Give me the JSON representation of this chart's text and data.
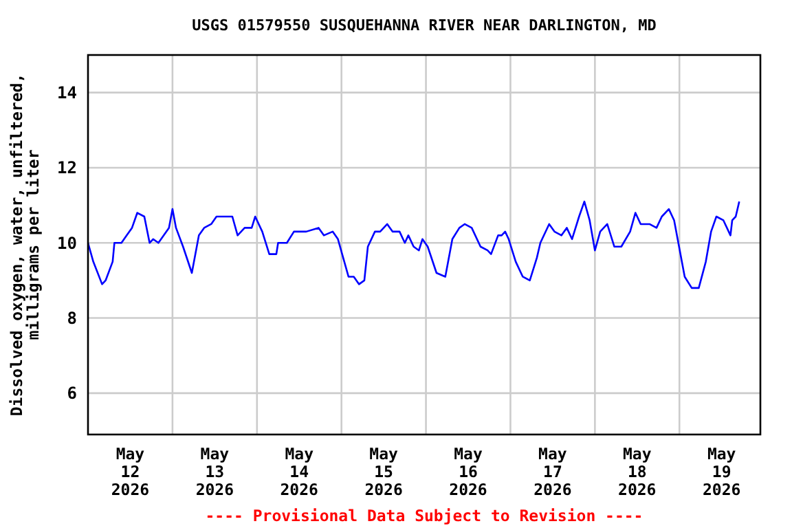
{
  "chart_data": {
    "type": "line",
    "title": "USGS 01579550 SUSQUEHANNA RIVER NEAR DARLINGTON, MD",
    "ylabel": "Dissolved oxygen, water, unfiltered,\nmilligrams per liter",
    "annotations": [
      "---- Provisional Data Subject to Revision ----"
    ],
    "xlim": [
      "2026-05-12T00:00",
      "2026-05-19T23:00"
    ],
    "xticks": [
      {
        "value": "2026-05-12T12:00",
        "label": "May\n12\n2026"
      },
      {
        "value": "2026-05-13T00:00",
        "label": null
      },
      {
        "value": "2026-05-13T12:00",
        "label": "May\n13\n2026"
      },
      {
        "value": "2026-05-14T00:00",
        "label": null
      },
      {
        "value": "2026-05-14T12:00",
        "label": "May\n14\n2026"
      },
      {
        "value": "2026-05-15T00:00",
        "label": null
      },
      {
        "value": "2026-05-15T12:00",
        "label": "May\n15\n2026"
      },
      {
        "value": "2026-05-16T00:00",
        "label": null
      },
      {
        "value": "2026-05-16T12:00",
        "label": "May\n16\n2026"
      },
      {
        "value": "2026-05-17T00:00",
        "label": null
      },
      {
        "value": "2026-05-17T12:00",
        "label": "May\n17\n2026"
      },
      {
        "value": "2026-05-18T00:00",
        "label": null
      },
      {
        "value": "2026-05-18T12:00",
        "label": "May\n18\n2026"
      },
      {
        "value": "2026-05-19T00:00",
        "label": null
      },
      {
        "value": "2026-05-19T12:00",
        "label": "May\n19\n2026"
      }
    ],
    "ylim": [
      4.9,
      15
    ],
    "yticks": [
      6,
      8,
      10,
      12,
      14
    ],
    "grid": true,
    "marker": "none",
    "line_style": "solid",
    "series": [
      {
        "color": "#0000ff",
        "x": [
          "2026-05-12T00:00",
          "2026-05-12T01:30",
          "2026-05-12T04:00",
          "2026-05-12T05:00",
          "2026-05-12T07:00",
          "2026-05-12T07:30",
          "2026-05-12T09:30",
          "2026-05-12T11:00",
          "2026-05-12T12:30",
          "2026-05-12T14:00",
          "2026-05-12T16:00",
          "2026-05-12T17:30",
          "2026-05-12T18:30",
          "2026-05-12T20:00",
          "2026-05-12T23:00",
          "2026-05-13T00:00",
          "2026-05-13T01:00",
          "2026-05-13T03:00",
          "2026-05-13T05:30",
          "2026-05-13T07:30",
          "2026-05-13T09:00",
          "2026-05-13T11:00",
          "2026-05-13T12:30",
          "2026-05-13T17:00",
          "2026-05-13T18:30",
          "2026-05-13T20:30",
          "2026-05-13T22:30",
          "2026-05-13T23:30",
          "2026-05-14T01:30",
          "2026-05-14T03:30",
          "2026-05-14T05:30",
          "2026-05-14T06:00",
          "2026-05-14T08:30",
          "2026-05-14T10:30",
          "2026-05-14T14:00",
          "2026-05-14T17:30",
          "2026-05-14T19:00",
          "2026-05-14T21:30",
          "2026-05-14T23:00",
          "2026-05-15T00:30",
          "2026-05-15T02:00",
          "2026-05-15T03:30",
          "2026-05-15T05:00",
          "2026-05-15T06:30",
          "2026-05-15T07:30",
          "2026-05-15T09:30",
          "2026-05-15T11:00",
          "2026-05-15T13:00",
          "2026-05-15T14:30",
          "2026-05-15T16:30",
          "2026-05-15T18:00",
          "2026-05-15T19:00",
          "2026-05-15T20:30",
          "2026-05-15T22:00",
          "2026-05-15T23:00",
          "2026-05-16T00:30",
          "2026-05-16T03:00",
          "2026-05-16T05:30",
          "2026-05-16T07:30",
          "2026-05-16T09:30",
          "2026-05-16T11:00",
          "2026-05-16T13:00",
          "2026-05-16T15:30",
          "2026-05-16T17:30",
          "2026-05-16T18:30",
          "2026-05-16T20:30",
          "2026-05-16T21:30",
          "2026-05-16T22:30",
          "2026-05-16T23:30",
          "2026-05-17T01:30",
          "2026-05-17T03:30",
          "2026-05-17T05:30",
          "2026-05-17T07:30",
          "2026-05-17T08:30",
          "2026-05-17T11:00",
          "2026-05-17T12:30",
          "2026-05-17T14:30",
          "2026-05-17T16:00",
          "2026-05-17T17:30",
          "2026-05-17T19:30",
          "2026-05-17T21:00",
          "2026-05-17T22:30",
          "2026-05-18T00:00",
          "2026-05-18T01:30",
          "2026-05-18T03:30",
          "2026-05-18T05:30",
          "2026-05-18T07:30",
          "2026-05-18T10:00",
          "2026-05-18T11:30",
          "2026-05-18T13:00",
          "2026-05-18T15:30",
          "2026-05-18T17:30",
          "2026-05-18T19:00",
          "2026-05-18T21:00",
          "2026-05-18T22:30",
          "2026-05-19T01:30",
          "2026-05-19T03:30",
          "2026-05-19T05:30",
          "2026-05-19T07:30",
          "2026-05-19T09:00",
          "2026-05-19T10:30",
          "2026-05-19T12:30",
          "2026-05-19T14:30",
          "2026-05-19T15:00",
          "2026-05-19T16:00",
          "2026-05-19T17:00"
        ],
        "values": [
          10.0,
          9.5,
          8.9,
          9.0,
          9.5,
          10.0,
          10.0,
          10.2,
          10.4,
          10.8,
          10.7,
          10.0,
          10.1,
          10.0,
          10.4,
          10.9,
          10.4,
          9.9,
          9.2,
          10.2,
          10.4,
          10.5,
          10.7,
          10.7,
          10.2,
          10.4,
          10.4,
          10.7,
          10.3,
          9.7,
          9.7,
          10.0,
          10.0,
          10.3,
          10.3,
          10.4,
          10.2,
          10.3,
          10.1,
          9.6,
          9.1,
          9.1,
          8.9,
          9.0,
          9.9,
          10.3,
          10.3,
          10.5,
          10.3,
          10.3,
          10.0,
          10.2,
          9.9,
          9.8,
          10.1,
          9.9,
          9.2,
          9.1,
          10.1,
          10.4,
          10.5,
          10.4,
          9.9,
          9.8,
          9.7,
          10.2,
          10.2,
          10.3,
          10.1,
          9.5,
          9.1,
          9.0,
          9.6,
          10.0,
          10.5,
          10.3,
          10.2,
          10.4,
          10.1,
          10.7,
          11.1,
          10.6,
          9.8,
          10.3,
          10.5,
          9.9,
          9.9,
          10.3,
          10.8,
          10.5,
          10.5,
          10.4,
          10.7,
          10.9,
          10.6,
          9.1,
          8.8,
          8.8,
          9.5,
          10.3,
          10.7,
          10.6,
          10.2,
          10.6,
          10.7,
          11.1
        ]
      }
    ]
  }
}
